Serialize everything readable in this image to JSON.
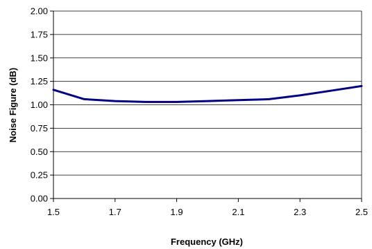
{
  "chart_data": {
    "type": "line",
    "title": "",
    "xlabel": "Frequency (GHz)",
    "ylabel": "Noise Figure (dB)",
    "xlim": [
      1.5,
      2.5
    ],
    "ylim": [
      0.0,
      2.0
    ],
    "x_ticks": [
      "1.5",
      "1.7",
      "1.9",
      "2.1",
      "2.3",
      "2.5"
    ],
    "y_ticks": [
      "0.00",
      "0.25",
      "0.50",
      "0.75",
      "1.00",
      "1.25",
      "1.50",
      "1.75",
      "2.00"
    ],
    "grid": "horizontal",
    "legend": "none",
    "colors": {
      "series": "#000080",
      "grid": "#000000",
      "axis": "#000000"
    },
    "series": [
      {
        "x": [
          1.5,
          1.6,
          1.7,
          1.8,
          1.9,
          2.0,
          2.1,
          2.2,
          2.3,
          2.4,
          2.5
        ],
        "values": [
          1.16,
          1.06,
          1.04,
          1.03,
          1.03,
          1.04,
          1.05,
          1.06,
          1.1,
          1.15,
          1.2
        ]
      }
    ]
  }
}
